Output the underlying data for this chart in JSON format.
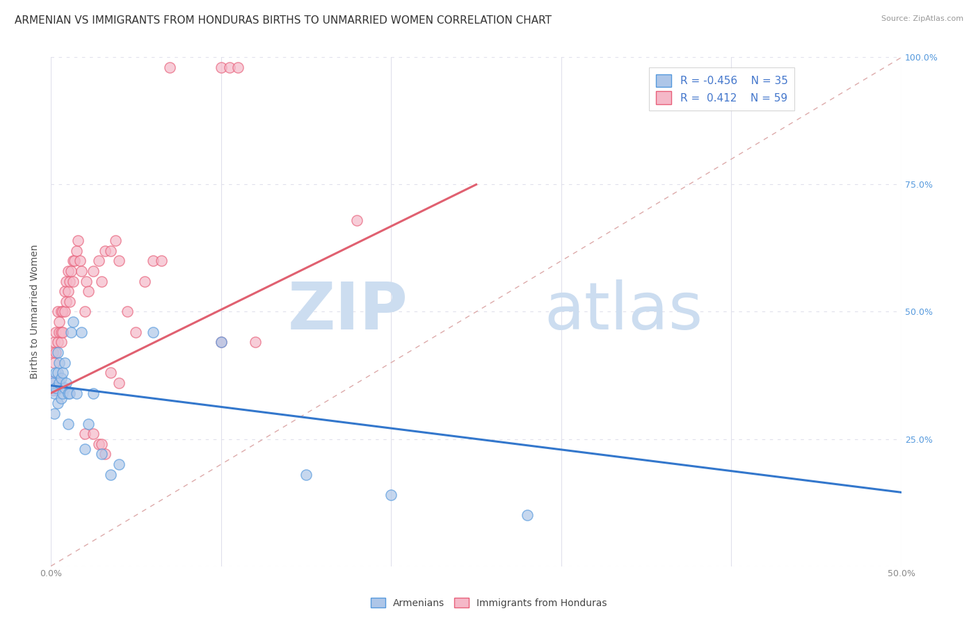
{
  "title": "ARMENIAN VS IMMIGRANTS FROM HONDURAS BIRTHS TO UNMARRIED WOMEN CORRELATION CHART",
  "source": "Source: ZipAtlas.com",
  "ylabel": "Births to Unmarried Women",
  "xlim": [
    0.0,
    0.5
  ],
  "ylim": [
    0.0,
    1.0
  ],
  "background_color": "#ffffff",
  "grid_color": "#e0e0ec",
  "armenian_color": "#aec6e8",
  "honduras_color": "#f5b8c8",
  "armenian_edge_color": "#5599dd",
  "honduras_edge_color": "#e8607a",
  "armenian_line_color": "#3377cc",
  "honduras_line_color": "#e06070",
  "diag_line_color": "#ddaaaa",
  "watermark_zip": "ZIP",
  "watermark_atlas": "atlas",
  "watermark_color": "#ccddf0",
  "legend_r_armenian": "R = -0.456",
  "legend_n_armenian": "N = 35",
  "legend_r_honduras": "R =  0.412",
  "legend_n_honduras": "N = 59",
  "armenian_scatter_x": [
    0.001,
    0.002,
    0.002,
    0.003,
    0.003,
    0.004,
    0.004,
    0.004,
    0.005,
    0.005,
    0.006,
    0.006,
    0.007,
    0.007,
    0.008,
    0.008,
    0.009,
    0.01,
    0.01,
    0.011,
    0.012,
    0.013,
    0.015,
    0.018,
    0.02,
    0.022,
    0.025,
    0.03,
    0.035,
    0.04,
    0.06,
    0.1,
    0.15,
    0.2,
    0.28
  ],
  "armenian_scatter_y": [
    0.36,
    0.34,
    0.3,
    0.38,
    0.35,
    0.42,
    0.38,
    0.32,
    0.36,
    0.4,
    0.37,
    0.33,
    0.38,
    0.34,
    0.4,
    0.35,
    0.36,
    0.34,
    0.28,
    0.34,
    0.46,
    0.48,
    0.34,
    0.46,
    0.23,
    0.28,
    0.34,
    0.22,
    0.18,
    0.2,
    0.46,
    0.44,
    0.18,
    0.14,
    0.1
  ],
  "honduras_scatter_x": [
    0.001,
    0.002,
    0.002,
    0.003,
    0.003,
    0.004,
    0.004,
    0.005,
    0.005,
    0.006,
    0.006,
    0.006,
    0.007,
    0.007,
    0.008,
    0.008,
    0.009,
    0.009,
    0.01,
    0.01,
    0.011,
    0.011,
    0.012,
    0.013,
    0.013,
    0.014,
    0.015,
    0.016,
    0.017,
    0.018,
    0.02,
    0.021,
    0.022,
    0.025,
    0.028,
    0.03,
    0.032,
    0.035,
    0.038,
    0.04,
    0.045,
    0.05,
    0.055,
    0.06,
    0.065,
    0.07,
    0.1,
    0.105,
    0.11,
    0.02,
    0.025,
    0.028,
    0.03,
    0.032,
    0.035,
    0.04,
    0.1,
    0.12,
    0.18
  ],
  "honduras_scatter_y": [
    0.42,
    0.4,
    0.44,
    0.46,
    0.42,
    0.5,
    0.44,
    0.46,
    0.48,
    0.44,
    0.5,
    0.46,
    0.5,
    0.46,
    0.54,
    0.5,
    0.56,
    0.52,
    0.58,
    0.54,
    0.56,
    0.52,
    0.58,
    0.6,
    0.56,
    0.6,
    0.62,
    0.64,
    0.6,
    0.58,
    0.5,
    0.56,
    0.54,
    0.58,
    0.6,
    0.56,
    0.62,
    0.62,
    0.64,
    0.6,
    0.5,
    0.46,
    0.56,
    0.6,
    0.6,
    0.98,
    0.98,
    0.98,
    0.98,
    0.26,
    0.26,
    0.24,
    0.24,
    0.22,
    0.38,
    0.36,
    0.44,
    0.44,
    0.68
  ],
  "arm_line_x0": 0.0,
  "arm_line_y0": 0.355,
  "arm_line_x1": 0.5,
  "arm_line_y1": 0.145,
  "hon_line_x0": 0.0,
  "hon_line_y0": 0.34,
  "hon_line_x1": 0.25,
  "hon_line_y1": 0.75,
  "title_fontsize": 11,
  "axis_label_fontsize": 10,
  "tick_fontsize": 9,
  "legend_fontsize": 11
}
